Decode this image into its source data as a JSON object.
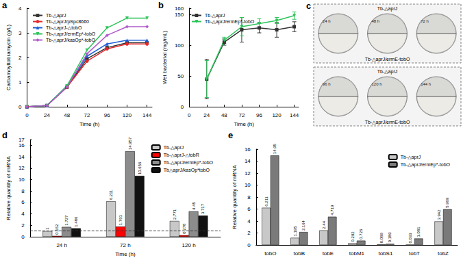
{
  "chart_data": [
    {
      "panel": "a",
      "type": "line",
      "x_label": "Time (h)",
      "y_label": "Carbamoyltobramycin (g/L)",
      "x": [
        0,
        24,
        48,
        72,
        96,
        120,
        144
      ],
      "xlim": [
        0,
        150
      ],
      "xticks": [
        0,
        24,
        48,
        72,
        96,
        120,
        144
      ],
      "ylim": [
        0,
        4
      ],
      "yticks": [
        0,
        1,
        2,
        3,
        4
      ],
      "grid": false,
      "legend": "upper left",
      "series": [
        {
          "name": "Tb-△aprJ",
          "color": "#333333",
          "marker": "square",
          "values": [
            0,
            0.05,
            0.8,
            1.95,
            2.4,
            2.6,
            2.6
          ]
        },
        {
          "name": "Tb-△aprJ/pSpc8660",
          "color": "#e8262b",
          "marker": "circle",
          "values": [
            0,
            0.05,
            0.8,
            1.85,
            2.35,
            2.55,
            2.55
          ]
        },
        {
          "name": "Tb-△aprJ-△tobO",
          "color": "#1f5fd6",
          "marker": "triangle",
          "values": [
            0,
            0.05,
            0.85,
            2.05,
            2.55,
            2.7,
            2.7
          ]
        },
        {
          "name": "Tb-△aprJ/ermEp*-tobO",
          "color": "#2ec45a",
          "marker": "triangle-down",
          "values": [
            0,
            0.05,
            0.85,
            2.3,
            3.2,
            3.6,
            3.6
          ]
        },
        {
          "name": "Tb-△aprJ/kasOp*-tobO",
          "color": "#b05cc9",
          "marker": "diamond",
          "values": [
            0,
            0.05,
            0.8,
            2.15,
            2.9,
            3.25,
            3.25
          ]
        }
      ]
    },
    {
      "panel": "b",
      "type": "line",
      "x_label": "Time (h)",
      "y_label": "Wet bacterial (mg/mL)",
      "x": [
        24,
        48,
        72,
        96,
        120,
        144
      ],
      "xlim": [
        0,
        150
      ],
      "xticks": [
        0,
        24,
        48,
        72,
        96,
        120,
        144
      ],
      "ylim": [
        0,
        160
      ],
      "yticks": [
        0,
        50,
        100,
        150
      ],
      "grid": false,
      "legend": "upper left",
      "series": [
        {
          "name": "Tb-△aprJ",
          "color": "#333333",
          "marker": "square",
          "values": [
            45,
            105,
            125,
            128,
            125,
            130
          ],
          "errors": [
            32,
            5,
            20,
            8,
            12,
            8
          ]
        },
        {
          "name": "Tb-△aprJ/ermEp*-tobO",
          "color": "#2ec45a",
          "marker": "triangle-down",
          "values": [
            45,
            108,
            130,
            135,
            140,
            148
          ],
          "errors": [
            30,
            5,
            15,
            8,
            5,
            6
          ]
        }
      ]
    },
    {
      "panel": "d",
      "type": "bar",
      "x_label": "Time (h)",
      "y_label": "Relative quantity of mRNA",
      "categories": [
        "24 h",
        "72 h",
        "120 h"
      ],
      "ylim": [
        0,
        17
      ],
      "yticks": [
        0,
        2,
        4,
        6,
        8,
        10,
        12,
        14,
        16
      ],
      "reference_line": 1,
      "data_labels": true,
      "grid": false,
      "legend": "upper right",
      "series": [
        {
          "name": "Tb-△aprJ",
          "color": "#c8c8c8",
          "values": [
            1,
            6.211,
            2.771
          ]
        },
        {
          "name": "Tb-△aprJ-△tobR",
          "color": "#ff0000",
          "values": [
            0.162,
            1.791,
            0.278
          ]
        },
        {
          "name": "Tb-△aprJ/ermEp*-tobO",
          "color": "#8c8c8c",
          "values": [
            1.727,
            14.957,
            4.45
          ]
        },
        {
          "name": "Tb△aprJ/kasOp*tobO",
          "color": "#111111",
          "values": [
            1.486,
            10.656,
            3.717
          ]
        }
      ]
    },
    {
      "panel": "e",
      "type": "bar",
      "y_label": "Relative quantity of mRNA",
      "categories": [
        "tobO",
        "tobB",
        "tobE",
        "tobM1",
        "tobS1",
        "tobT",
        "tobZ"
      ],
      "ylim": [
        0,
        16
      ],
      "yticks": [
        0,
        2,
        4,
        6,
        8,
        10,
        12,
        14,
        16
      ],
      "data_labels": true,
      "grid": false,
      "legend": "upper right",
      "series": [
        {
          "name": "Tb-△aprJ",
          "color": "#c8c8c8",
          "values": [
            6.211,
            1.195,
            2.44,
            0.292,
            0.089,
            0.033,
            3.942
          ]
        },
        {
          "name": "Tb-△aprJ/ermEp*-tobO",
          "color": "#7a7a7a",
          "values": [
            14.95,
            2.164,
            4.719,
            0.726,
            0.189,
            1.081,
            5.969
          ]
        }
      ]
    }
  ],
  "photo_panel": {
    "panel": "c",
    "groups": [
      {
        "top_label": "Tb-△aprJ",
        "bottom_label": "Tb-△aprJ/ermE-tobO",
        "plates": [
          "24 h",
          "48 h",
          "72 h"
        ]
      },
      {
        "top_label": "Tb-△aprJ",
        "bottom_label": "Tb-△aprJ/ermE-tobO",
        "plates": [
          "96 h",
          "120 h",
          "144 h"
        ]
      }
    ]
  }
}
